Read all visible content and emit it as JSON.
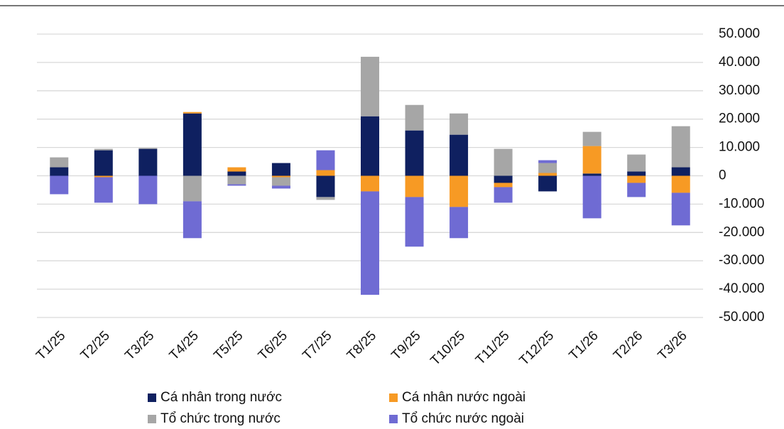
{
  "chart_data": {
    "type": "stacked_bar",
    "categories": [
      "T1/25",
      "T2/25",
      "T3/25",
      "T4/25",
      "T5/25",
      "T6/25",
      "T7/25",
      "T8/25",
      "T9/25",
      "T10/25",
      "T11/25",
      "T12/25",
      "T1/26",
      "T2/26",
      "T3/26"
    ],
    "series": [
      {
        "name": "Cá nhân trong nước",
        "color": "#0f2060",
        "values": [
          3000,
          9000,
          9500,
          22000,
          1500,
          4500,
          -7500,
          21000,
          16000,
          14500,
          -2500,
          -5500,
          800,
          1500,
          3000
        ]
      },
      {
        "name": "Cá nhân nước ngoài",
        "color": "#f79a24",
        "values": [
          0,
          -500,
          0,
          500,
          1500,
          -500,
          2000,
          -5500,
          -7500,
          -11000,
          -1500,
          1000,
          9700,
          -2500,
          -6000
        ]
      },
      {
        "name": "Tổ chức trong nước",
        "color": "#a6a6a6",
        "values": [
          3500,
          500,
          300,
          -9000,
          -3000,
          -3000,
          -1000,
          21000,
          9000,
          7500,
          9500,
          3500,
          5000,
          6000,
          14500
        ]
      },
      {
        "name": "Tổ chức nước ngoài",
        "color": "#6f6bd3",
        "values": [
          -6500,
          -9000,
          -10000,
          -13000,
          -500,
          -1000,
          7000,
          -36500,
          -17500,
          -11000,
          -5500,
          1000,
          -15000,
          -5000,
          -11500
        ]
      }
    ],
    "ylim": [
      -50000,
      50000
    ],
    "yticks": [
      {
        "value": -50000,
        "label": "-50.000"
      },
      {
        "value": -40000,
        "label": "-40.000"
      },
      {
        "value": -30000,
        "label": "-30.000"
      },
      {
        "value": -20000,
        "label": "-20.000"
      },
      {
        "value": -10000,
        "label": "-10.000"
      },
      0,
      {
        "value": 10000,
        "label": "10.000"
      },
      {
        "value": 20000,
        "label": "20.000"
      },
      {
        "value": 30000,
        "label": "30.000"
      },
      {
        "value": 40000,
        "label": "40.000"
      },
      {
        "value": 50000,
        "label": "50.000"
      }
    ],
    "grid": true,
    "legend": "bottom"
  }
}
